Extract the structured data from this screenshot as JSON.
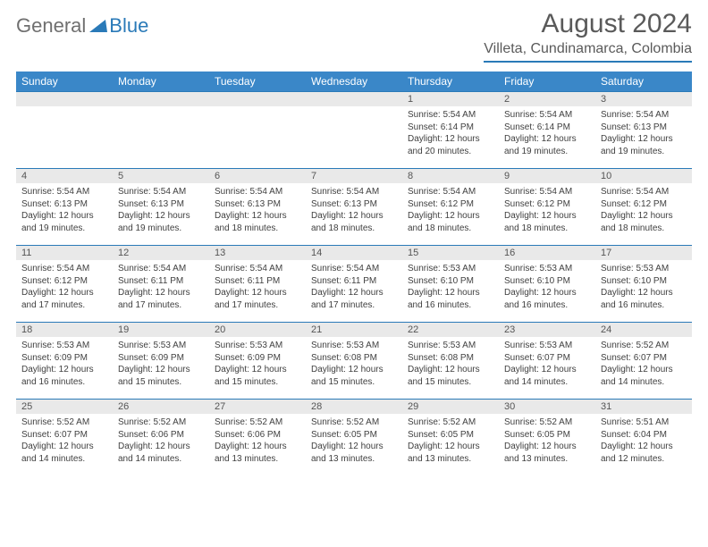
{
  "logo": {
    "general": "General",
    "blue": "Blue"
  },
  "title": "August 2024",
  "location": "Villeta, Cundinamarca, Colombia",
  "colors": {
    "header_bg": "#3a87c8",
    "border": "#2a7ab8",
    "daynum_bg": "#e9e9e9",
    "text": "#404040",
    "title_text": "#5a5a5a"
  },
  "weekdays": [
    "Sunday",
    "Monday",
    "Tuesday",
    "Wednesday",
    "Thursday",
    "Friday",
    "Saturday"
  ],
  "weeks": [
    [
      null,
      null,
      null,
      null,
      {
        "n": "1",
        "sr": "5:54 AM",
        "ss": "6:14 PM",
        "dl": "12 hours and 20 minutes."
      },
      {
        "n": "2",
        "sr": "5:54 AM",
        "ss": "6:14 PM",
        "dl": "12 hours and 19 minutes."
      },
      {
        "n": "3",
        "sr": "5:54 AM",
        "ss": "6:13 PM",
        "dl": "12 hours and 19 minutes."
      }
    ],
    [
      {
        "n": "4",
        "sr": "5:54 AM",
        "ss": "6:13 PM",
        "dl": "12 hours and 19 minutes."
      },
      {
        "n": "5",
        "sr": "5:54 AM",
        "ss": "6:13 PM",
        "dl": "12 hours and 19 minutes."
      },
      {
        "n": "6",
        "sr": "5:54 AM",
        "ss": "6:13 PM",
        "dl": "12 hours and 18 minutes."
      },
      {
        "n": "7",
        "sr": "5:54 AM",
        "ss": "6:13 PM",
        "dl": "12 hours and 18 minutes."
      },
      {
        "n": "8",
        "sr": "5:54 AM",
        "ss": "6:12 PM",
        "dl": "12 hours and 18 minutes."
      },
      {
        "n": "9",
        "sr": "5:54 AM",
        "ss": "6:12 PM",
        "dl": "12 hours and 18 minutes."
      },
      {
        "n": "10",
        "sr": "5:54 AM",
        "ss": "6:12 PM",
        "dl": "12 hours and 18 minutes."
      }
    ],
    [
      {
        "n": "11",
        "sr": "5:54 AM",
        "ss": "6:12 PM",
        "dl": "12 hours and 17 minutes."
      },
      {
        "n": "12",
        "sr": "5:54 AM",
        "ss": "6:11 PM",
        "dl": "12 hours and 17 minutes."
      },
      {
        "n": "13",
        "sr": "5:54 AM",
        "ss": "6:11 PM",
        "dl": "12 hours and 17 minutes."
      },
      {
        "n": "14",
        "sr": "5:54 AM",
        "ss": "6:11 PM",
        "dl": "12 hours and 17 minutes."
      },
      {
        "n": "15",
        "sr": "5:53 AM",
        "ss": "6:10 PM",
        "dl": "12 hours and 16 minutes."
      },
      {
        "n": "16",
        "sr": "5:53 AM",
        "ss": "6:10 PM",
        "dl": "12 hours and 16 minutes."
      },
      {
        "n": "17",
        "sr": "5:53 AM",
        "ss": "6:10 PM",
        "dl": "12 hours and 16 minutes."
      }
    ],
    [
      {
        "n": "18",
        "sr": "5:53 AM",
        "ss": "6:09 PM",
        "dl": "12 hours and 16 minutes."
      },
      {
        "n": "19",
        "sr": "5:53 AM",
        "ss": "6:09 PM",
        "dl": "12 hours and 15 minutes."
      },
      {
        "n": "20",
        "sr": "5:53 AM",
        "ss": "6:09 PM",
        "dl": "12 hours and 15 minutes."
      },
      {
        "n": "21",
        "sr": "5:53 AM",
        "ss": "6:08 PM",
        "dl": "12 hours and 15 minutes."
      },
      {
        "n": "22",
        "sr": "5:53 AM",
        "ss": "6:08 PM",
        "dl": "12 hours and 15 minutes."
      },
      {
        "n": "23",
        "sr": "5:53 AM",
        "ss": "6:07 PM",
        "dl": "12 hours and 14 minutes."
      },
      {
        "n": "24",
        "sr": "5:52 AM",
        "ss": "6:07 PM",
        "dl": "12 hours and 14 minutes."
      }
    ],
    [
      {
        "n": "25",
        "sr": "5:52 AM",
        "ss": "6:07 PM",
        "dl": "12 hours and 14 minutes."
      },
      {
        "n": "26",
        "sr": "5:52 AM",
        "ss": "6:06 PM",
        "dl": "12 hours and 14 minutes."
      },
      {
        "n": "27",
        "sr": "5:52 AM",
        "ss": "6:06 PM",
        "dl": "12 hours and 13 minutes."
      },
      {
        "n": "28",
        "sr": "5:52 AM",
        "ss": "6:05 PM",
        "dl": "12 hours and 13 minutes."
      },
      {
        "n": "29",
        "sr": "5:52 AM",
        "ss": "6:05 PM",
        "dl": "12 hours and 13 minutes."
      },
      {
        "n": "30",
        "sr": "5:52 AM",
        "ss": "6:05 PM",
        "dl": "12 hours and 13 minutes."
      },
      {
        "n": "31",
        "sr": "5:51 AM",
        "ss": "6:04 PM",
        "dl": "12 hours and 12 minutes."
      }
    ]
  ],
  "labels": {
    "sunrise": "Sunrise: ",
    "sunset": "Sunset: ",
    "daylight": "Daylight: "
  }
}
